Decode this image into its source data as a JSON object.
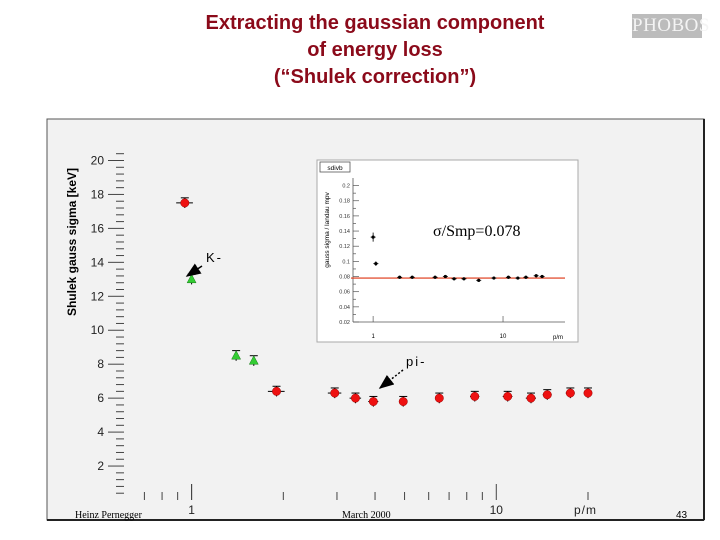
{
  "slide": {
    "title_lines": [
      "Extracting the gaussian component",
      "of energy loss",
      "(“Shulek correction”)"
    ],
    "logo_text": "PHOBOS",
    "author": "Heinz Pernegger",
    "date": "March 2000",
    "page_number": "43"
  },
  "colors": {
    "title": "#8b0a1a",
    "frame_bg": "#f2f2f2",
    "kaon_marker": "#33cc33",
    "pion_marker": "#ee1111",
    "inset_fit_line": "#dd3311"
  },
  "chart_data": [
    {
      "type": "scatter",
      "ylabel": "Shulek gauss sigma [keV]",
      "xlabel": "p/m",
      "x_scale": "log",
      "xlim": [
        0.6,
        20
      ],
      "ylim": [
        0,
        20.5
      ],
      "x_tick_labels": [
        "1",
        "10"
      ],
      "y_tick_labels": [
        "2",
        "4",
        "6",
        "8",
        "10",
        "12",
        "14",
        "16",
        "18",
        "20"
      ],
      "annotations": [
        {
          "text": "K-",
          "x": 1.25,
          "y": 14.0
        },
        {
          "text": "pi-",
          "x": 4.7,
          "y": 8.1
        }
      ],
      "series": [
        {
          "name": "K-",
          "marker": "triangle",
          "color": "#33cc33",
          "x": [
            1.0,
            1.4,
            1.6
          ],
          "y": [
            13.0,
            8.5,
            8.2
          ],
          "xerr": [
            0.0,
            0.0,
            0.0
          ],
          "yerr": [
            0.3,
            0.3,
            0.3
          ]
        },
        {
          "name": "pi-",
          "marker": "circle",
          "color": "#ee1111",
          "x": [
            0.95,
            1.9,
            2.95,
            3.45,
            3.95,
            4.95,
            6.5,
            8.5,
            10.9,
            13.0,
            14.7,
            17.5,
            20.0
          ],
          "y": [
            17.5,
            6.4,
            6.3,
            6.0,
            5.8,
            5.8,
            6.0,
            6.1,
            6.1,
            6.0,
            6.2,
            6.3,
            6.3
          ],
          "xerr": [
            0.06,
            0.12,
            0.15,
            0.15,
            0.15,
            0.15,
            0.2,
            0.3,
            0.4,
            0.5,
            0.5,
            0.6,
            0.6
          ],
          "yerr": [
            0.3,
            0.3,
            0.3,
            0.3,
            0.3,
            0.3,
            0.3,
            0.3,
            0.3,
            0.3,
            0.3,
            0.3,
            0.3
          ]
        }
      ]
    },
    {
      "type": "scatter",
      "inset_tag": "sdivb",
      "ylabel": "gauss sigma / landau mpv",
      "xlabel": "p/m",
      "x_scale": "log",
      "xlim": [
        0.7,
        30
      ],
      "ylim": [
        0.02,
        0.21
      ],
      "x_tick_labels": [
        "1",
        "10",
        "p/m"
      ],
      "y_tick_labels": [
        "0.02",
        "0.04",
        "0.06",
        "0.08",
        "0.1",
        "0.12",
        "0.14",
        "0.16",
        "0.18",
        "0.2"
      ],
      "annotation": "σ/Smp=0.078",
      "fit_line_y": 0.078,
      "points": {
        "x": [
          1.0,
          1.05,
          1.6,
          2.0,
          3.0,
          3.6,
          4.2,
          5.0,
          6.5,
          8.5,
          11.0,
          13.0,
          15.0,
          18.0,
          20.0
        ],
        "y": [
          0.132,
          0.097,
          0.079,
          0.079,
          0.079,
          0.08,
          0.077,
          0.077,
          0.075,
          0.078,
          0.079,
          0.078,
          0.079,
          0.081,
          0.08
        ],
        "yerr": [
          0.006,
          0.003,
          0.002,
          0.002,
          0.002,
          0.002,
          0.002,
          0.002,
          0.002,
          0.002,
          0.002,
          0.002,
          0.002,
          0.002,
          0.002
        ]
      }
    }
  ]
}
